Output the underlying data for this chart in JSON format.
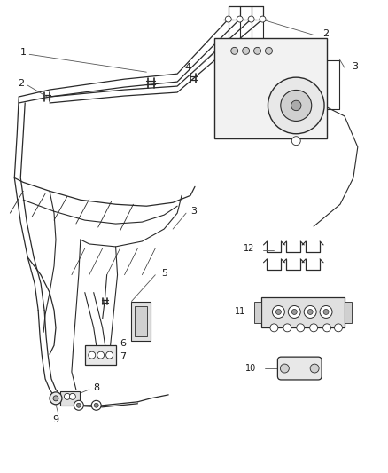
{
  "bg_color": "#ffffff",
  "line_color": "#2a2a2a",
  "label_color": "#1a1a1a",
  "font_size": 8,
  "figsize": [
    4.38,
    5.33
  ],
  "dpi": 100
}
